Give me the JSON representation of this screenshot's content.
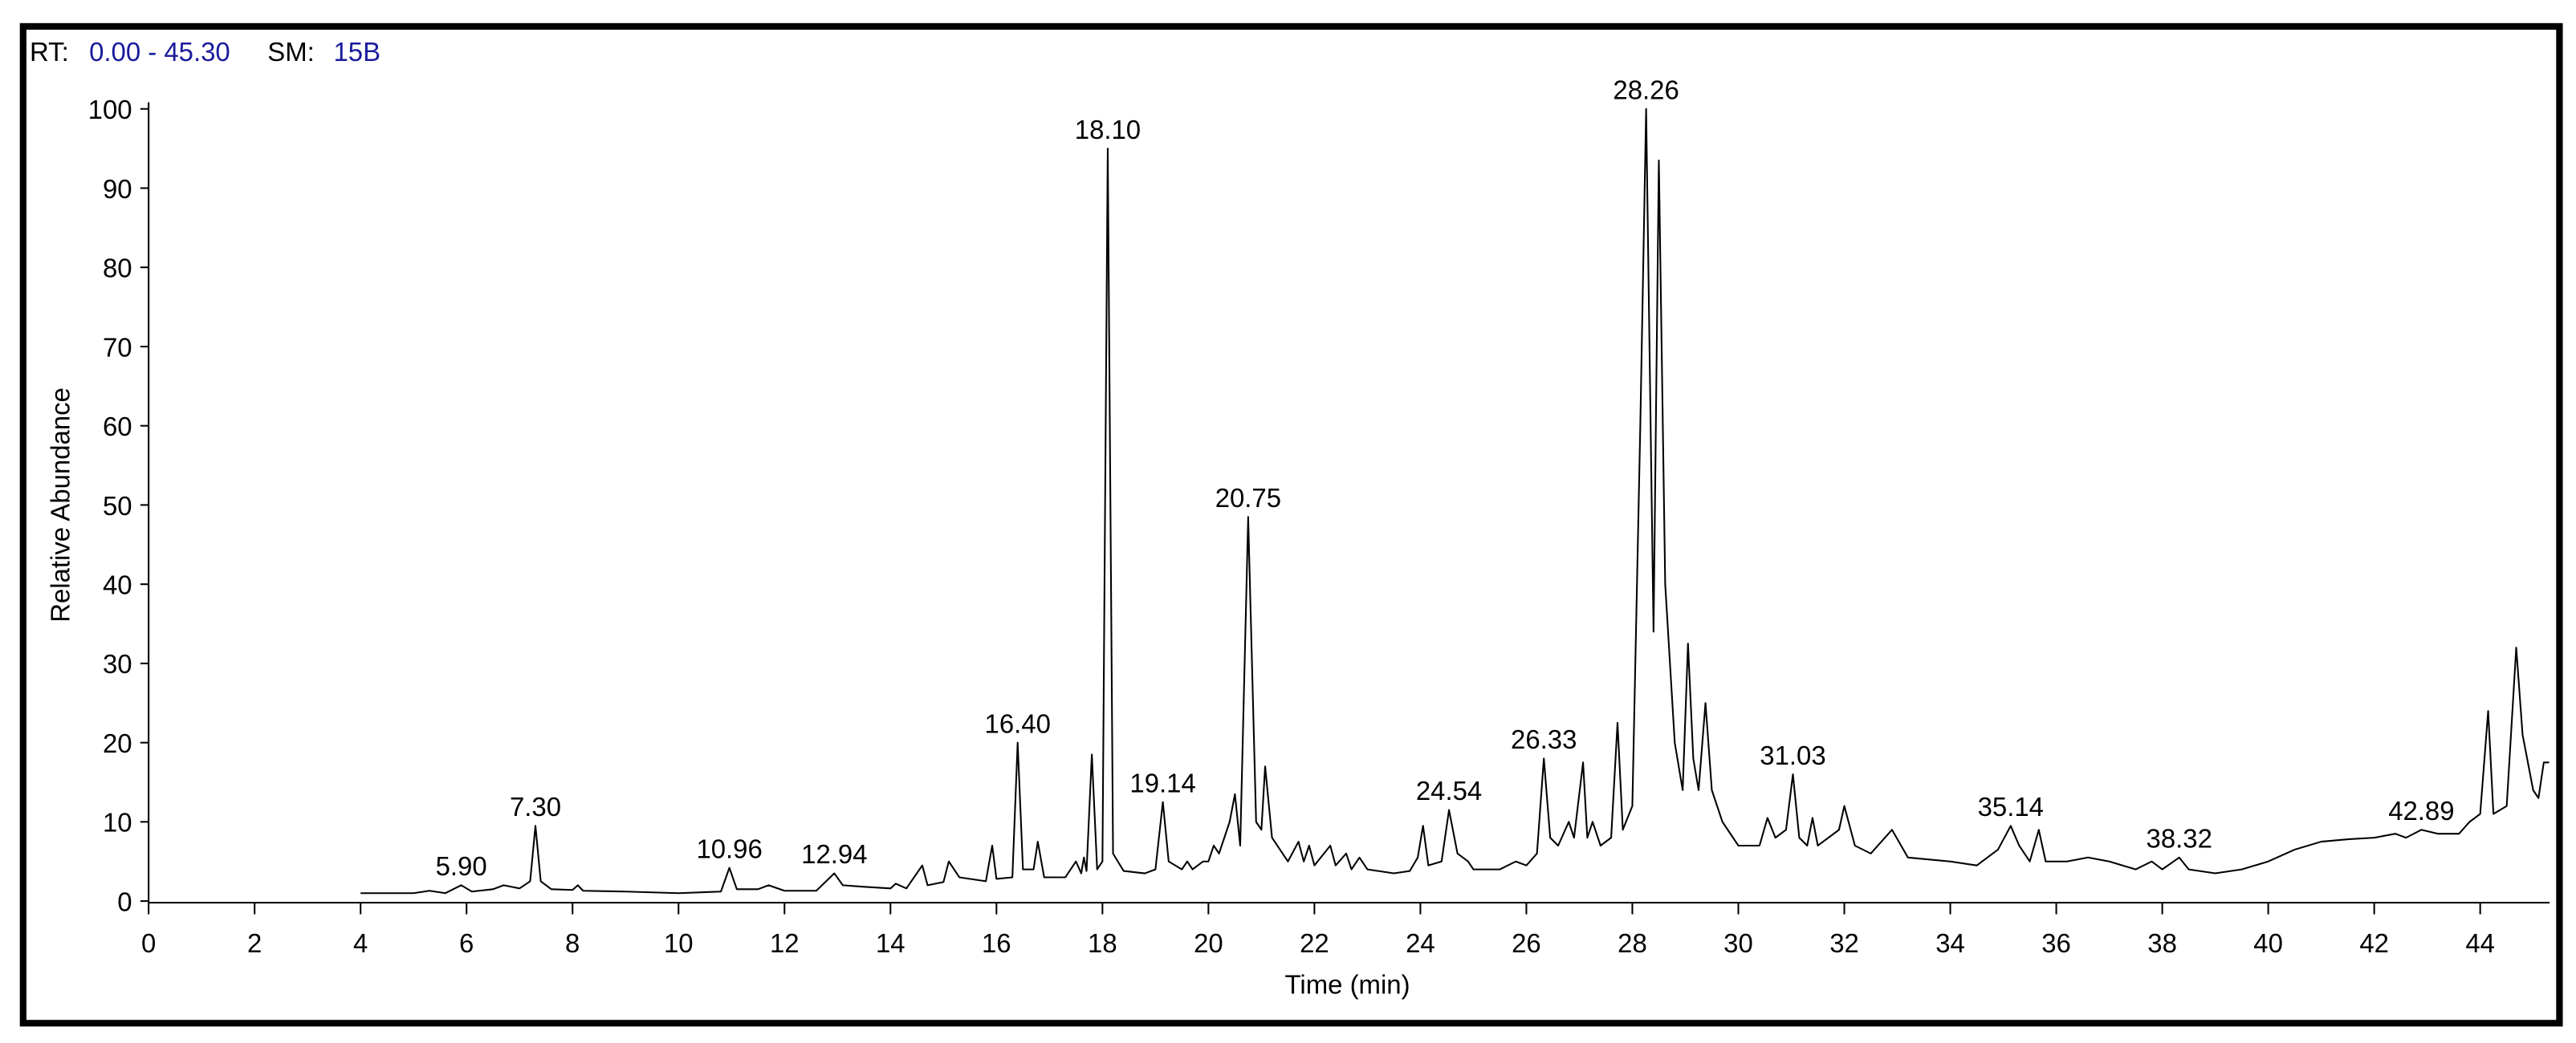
{
  "chart_data": {
    "type": "line",
    "header": {
      "rt_label": "RT:",
      "rt_range": "0.00 - 45.30",
      "sm_label": "SM:",
      "sm_value": "15B"
    },
    "xlabel": "Time (min)",
    "ylabel": "Relative Abundance",
    "xlim": [
      0,
      45.3
    ],
    "ylim": [
      0,
      100
    ],
    "xticks": [
      0,
      2,
      4,
      6,
      8,
      10,
      12,
      14,
      16,
      18,
      20,
      22,
      24,
      26,
      28,
      30,
      32,
      34,
      36,
      38,
      40,
      42,
      44
    ],
    "yticks": [
      0,
      10,
      20,
      30,
      40,
      50,
      60,
      70,
      80,
      90,
      100
    ],
    "color": "#000000",
    "x": [
      4.0,
      5.0,
      5.3,
      5.6,
      5.9,
      6.1,
      6.5,
      6.7,
      7.0,
      7.2,
      7.3,
      7.4,
      7.6,
      8.0,
      8.1,
      8.2,
      9.0,
      10.0,
      10.8,
      10.96,
      11.1,
      11.5,
      11.7,
      12.0,
      12.6,
      12.94,
      13.1,
      13.5,
      14.0,
      14.1,
      14.3,
      14.6,
      14.7,
      15.0,
      15.1,
      15.3,
      15.8,
      15.92,
      16.0,
      16.3,
      16.4,
      16.5,
      16.7,
      16.78,
      16.9,
      17.3,
      17.5,
      17.6,
      17.65,
      17.7,
      17.8,
      17.9,
      18.0,
      18.1,
      18.2,
      18.4,
      18.8,
      19.0,
      19.14,
      19.25,
      19.5,
      19.6,
      19.7,
      19.9,
      20.0,
      20.1,
      20.2,
      20.4,
      20.5,
      20.6,
      20.75,
      20.9,
      21.0,
      21.07,
      21.2,
      21.5,
      21.7,
      21.8,
      21.9,
      22.0,
      22.3,
      22.4,
      22.6,
      22.7,
      22.85,
      23.0,
      23.5,
      23.8,
      23.95,
      24.05,
      24.15,
      24.4,
      24.54,
      24.7,
      24.9,
      25.0,
      25.5,
      25.8,
      26.0,
      26.2,
      26.33,
      26.45,
      26.6,
      26.8,
      26.9,
      27.07,
      27.15,
      27.25,
      27.4,
      27.6,
      27.72,
      27.82,
      28.0,
      28.15,
      28.26,
      28.4,
      28.5,
      28.62,
      28.8,
      28.95,
      29.05,
      29.15,
      29.25,
      29.38,
      29.5,
      29.7,
      30.0,
      30.4,
      30.55,
      30.7,
      30.9,
      31.03,
      31.15,
      31.3,
      31.4,
      31.5,
      31.9,
      32.0,
      32.2,
      32.5,
      32.9,
      33.2,
      34.0,
      34.5,
      34.9,
      35.14,
      35.3,
      35.5,
      35.67,
      35.8,
      36.2,
      36.6,
      37.0,
      37.5,
      37.8,
      38.0,
      38.32,
      38.5,
      39.0,
      39.5,
      40.0,
      40.5,
      41.0,
      41.5,
      42.0,
      42.4,
      42.6,
      42.89,
      43.2,
      43.6,
      43.8,
      44.0,
      44.15,
      44.25,
      44.5,
      44.68,
      44.8,
      45.0,
      45.1,
      45.2,
      45.3
    ],
    "values": [
      1.0,
      1.0,
      1.3,
      1.0,
      2.0,
      1.2,
      1.5,
      2.0,
      1.6,
      2.5,
      9.5,
      2.5,
      1.5,
      1.4,
      2.0,
      1.3,
      1.2,
      1.0,
      1.2,
      4.2,
      1.5,
      1.5,
      2.0,
      1.3,
      1.3,
      3.5,
      2.0,
      1.8,
      1.6,
      2.2,
      1.6,
      4.5,
      2.0,
      2.4,
      5.0,
      3.0,
      2.5,
      7.0,
      2.8,
      3.0,
      20,
      4.0,
      4.0,
      7.5,
      3.0,
      3.0,
      5.0,
      3.5,
      5.5,
      3.8,
      18.5,
      4.0,
      5.0,
      95,
      6.0,
      3.8,
      3.5,
      4.0,
      12.5,
      5.0,
      4.0,
      5.0,
      4.0,
      5.0,
      5.0,
      7.0,
      6.0,
      10,
      13.5,
      7.0,
      48.5,
      10,
      9.0,
      17,
      8.0,
      5.0,
      7.5,
      5.0,
      7.0,
      4.5,
      7.0,
      4.5,
      6.0,
      4.0,
      5.5,
      4.0,
      3.5,
      3.8,
      5.5,
      9.5,
      4.5,
      5.0,
      11.5,
      6.0,
      5.0,
      4.0,
      4.0,
      5.0,
      4.5,
      6.0,
      18,
      8.0,
      7.0,
      10,
      8.0,
      17.5,
      8.0,
      10,
      7.0,
      8.0,
      22.5,
      9.0,
      12,
      60,
      100,
      34,
      93.5,
      40,
      20,
      14,
      32.5,
      18,
      14,
      25,
      14,
      10,
      7.0,
      7.0,
      10.5,
      8.0,
      9.0,
      16,
      8.0,
      7.0,
      10.5,
      7.0,
      9.0,
      12,
      7.0,
      6.0,
      9.0,
      5.5,
      5.0,
      4.5,
      6.5,
      9.5,
      7.0,
      5.0,
      9.0,
      5.0,
      5.0,
      5.5,
      5.0,
      4.0,
      5.0,
      4.0,
      5.5,
      4.0,
      3.5,
      4.0,
      5.0,
      6.5,
      7.5,
      7.8,
      8.0,
      8.5,
      8.0,
      9.0,
      8.5,
      8.5,
      10,
      11,
      24,
      11,
      12,
      32,
      21,
      14,
      13,
      17.5,
      17.5
    ],
    "annotations": [
      {
        "label": "5.90",
        "x": 5.9,
        "y": 2.0
      },
      {
        "label": "7.30",
        "x": 7.3,
        "y": 9.5
      },
      {
        "label": "10.96",
        "x": 10.96,
        "y": 4.2
      },
      {
        "label": "12.94",
        "x": 12.94,
        "y": 3.5
      },
      {
        "label": "16.40",
        "x": 16.4,
        "y": 20
      },
      {
        "label": "18.10",
        "x": 18.1,
        "y": 95
      },
      {
        "label": "19.14",
        "x": 19.14,
        "y": 12.5
      },
      {
        "label": "20.75",
        "x": 20.75,
        "y": 48.5
      },
      {
        "label": "24.54",
        "x": 24.54,
        "y": 11.5
      },
      {
        "label": "26.33",
        "x": 26.33,
        "y": 18
      },
      {
        "label": "28.26",
        "x": 28.26,
        "y": 100
      },
      {
        "label": "31.03",
        "x": 31.03,
        "y": 16
      },
      {
        "label": "35.14",
        "x": 35.14,
        "y": 9.5
      },
      {
        "label": "38.32",
        "x": 38.32,
        "y": 5.5
      },
      {
        "label": "42.89",
        "x": 42.89,
        "y": 9.0
      }
    ]
  }
}
